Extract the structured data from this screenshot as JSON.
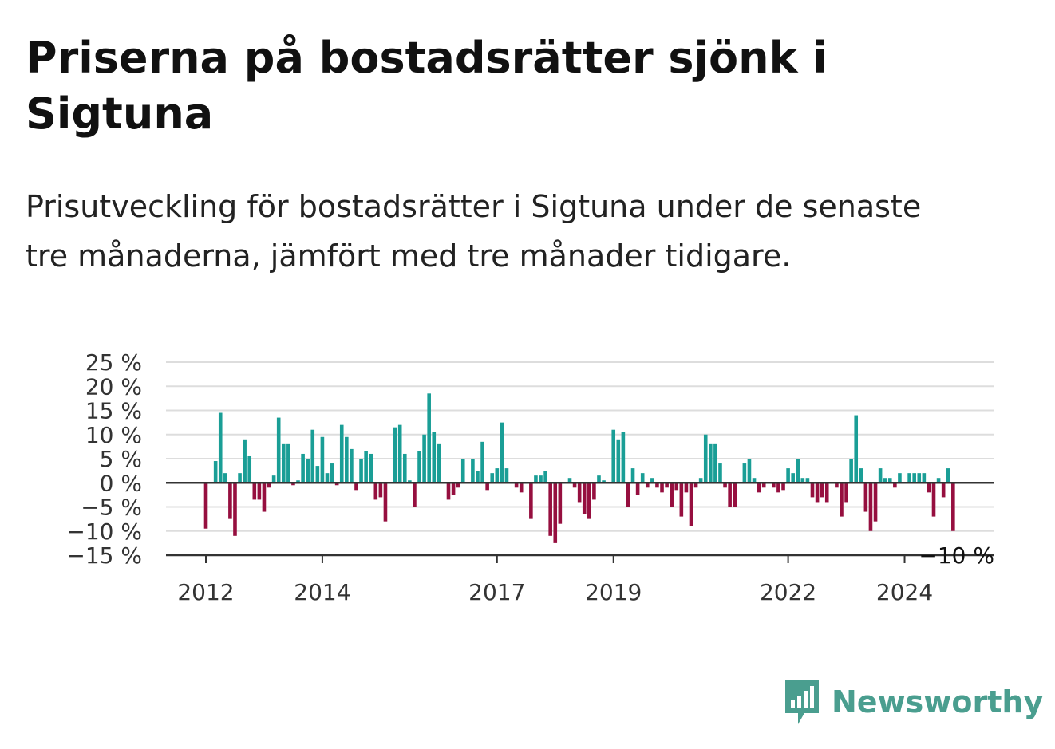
{
  "title": "Priserna på bostadsrätter sjönk i Sigtuna",
  "subtitle": "Prisutveckling för bostadsrätter i Sigtuna under de senaste tre månaderna, jämfört med tre månader tidigare.",
  "brand": {
    "name": "Newsworthy",
    "color": "#4a9e8f"
  },
  "colors": {
    "positive": "#1a9e96",
    "negative": "#960f3f",
    "grid": "#dddddd",
    "zero": "#333333"
  },
  "chart_data": {
    "type": "bar",
    "x_start": "2012-01",
    "x_step": "month",
    "yticks": [
      "25 %",
      "20 %",
      "15 %",
      "10 %",
      "5 %",
      "0 %",
      "−5 %",
      "−10 %",
      "−15 %"
    ],
    "ytick_values": [
      25,
      20,
      15,
      10,
      5,
      0,
      -5,
      -10,
      -15
    ],
    "ylim": [
      -15,
      25
    ],
    "xticks": [
      "2012",
      "2014",
      "2017",
      "2019",
      "2022",
      "2024"
    ],
    "xtick_years": [
      2012,
      2014,
      2017,
      2019,
      2022,
      2024
    ],
    "grid": true,
    "last_value_label": "−10 %",
    "values": [
      -9.5,
      0,
      4.5,
      14.5,
      2,
      -7.5,
      -11,
      2,
      9,
      5.5,
      -3.5,
      -3.5,
      -6,
      -1,
      1.5,
      13.5,
      8,
      8,
      -0.5,
      0.5,
      6,
      5,
      11,
      3.5,
      9.5,
      2,
      4,
      -0.5,
      12,
      9.5,
      7,
      -1.5,
      5,
      6.5,
      6,
      -3.5,
      -3,
      -8,
      0,
      11.5,
      12,
      6,
      0.5,
      -5,
      6.5,
      10,
      18.5,
      10.5,
      8,
      0,
      -3.5,
      -2.5,
      -1,
      5,
      0,
      5,
      2.5,
      8.5,
      -1.5,
      2,
      3,
      12.5,
      3,
      0,
      -1,
      -2,
      0,
      -7.5,
      1.5,
      1.5,
      2.5,
      -11,
      -12.5,
      -8.5,
      0,
      1,
      -1,
      -4,
      -6.5,
      -7.5,
      -3.5,
      1.5,
      0.5,
      0,
      11,
      9,
      10.5,
      -5,
      3,
      -2.5,
      2,
      -1,
      1,
      -1,
      -2,
      -1,
      -5,
      -1.5,
      -7,
      -2,
      -9,
      -1,
      1,
      10,
      8,
      8,
      4,
      -1,
      -5,
      -5,
      0,
      4,
      5,
      1,
      -2,
      -1,
      0,
      -1,
      -2,
      -1.5,
      3,
      2,
      5,
      1,
      1,
      -3,
      -4,
      -3,
      -4,
      0,
      -1,
      -7,
      -4,
      5,
      14,
      3,
      -6,
      -10,
      -8,
      3,
      1,
      1,
      -1,
      2,
      0,
      2,
      2,
      2,
      2,
      -2,
      -7,
      1,
      -3,
      3,
      -10
    ]
  }
}
